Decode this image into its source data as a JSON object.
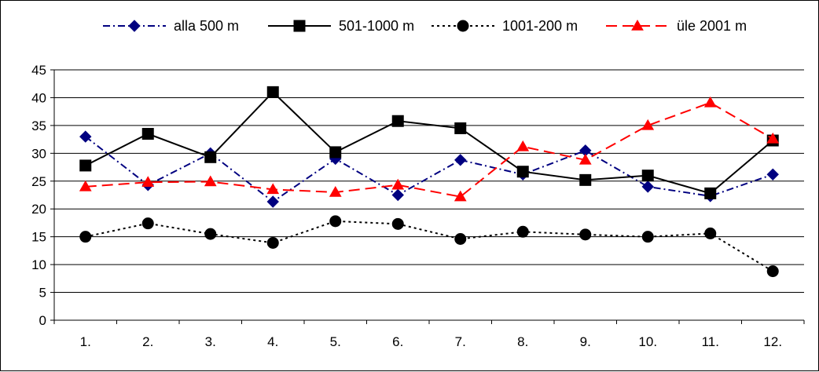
{
  "chart_data": {
    "type": "line",
    "title": "",
    "xlabel": "",
    "ylabel": "",
    "categories": [
      "1.",
      "2.",
      "3.",
      "4.",
      "5.",
      "6.",
      "7.",
      "8.",
      "9.",
      "10.",
      "11.",
      "12."
    ],
    "ylim": [
      0,
      45
    ],
    "y_ticks": [
      "0",
      "5",
      "10",
      "15",
      "20",
      "25",
      "30",
      "35",
      "40",
      "45"
    ],
    "grid": true,
    "legend_position": "top",
    "series": [
      {
        "name": "alla 500 m",
        "color": "#000080",
        "dash": "dash-dot",
        "marker": "diamond",
        "values": [
          33.0,
          24.3,
          30.0,
          21.3,
          29.0,
          22.5,
          28.8,
          26.2,
          30.5,
          24.0,
          22.3,
          26.2
        ]
      },
      {
        "name": "501-1000 m",
        "color": "#000000",
        "dash": "solid",
        "marker": "square",
        "values": [
          27.8,
          33.5,
          29.3,
          41.0,
          30.2,
          35.8,
          34.5,
          26.7,
          25.2,
          26.0,
          22.8,
          32.3
        ]
      },
      {
        "name": "1001-200 m",
        "color": "#000000",
        "dash": "dotted",
        "marker": "circle",
        "values": [
          15.0,
          17.4,
          15.5,
          13.9,
          17.8,
          17.3,
          14.6,
          15.9,
          15.4,
          15.0,
          15.6,
          8.8
        ]
      },
      {
        "name": "üle 2001 m",
        "color": "#ff0000",
        "dash": "dashed",
        "marker": "triangle",
        "values": [
          24.0,
          24.8,
          24.9,
          23.5,
          23.0,
          24.3,
          22.2,
          31.2,
          28.8,
          35.0,
          39.1,
          32.6
        ]
      }
    ]
  }
}
